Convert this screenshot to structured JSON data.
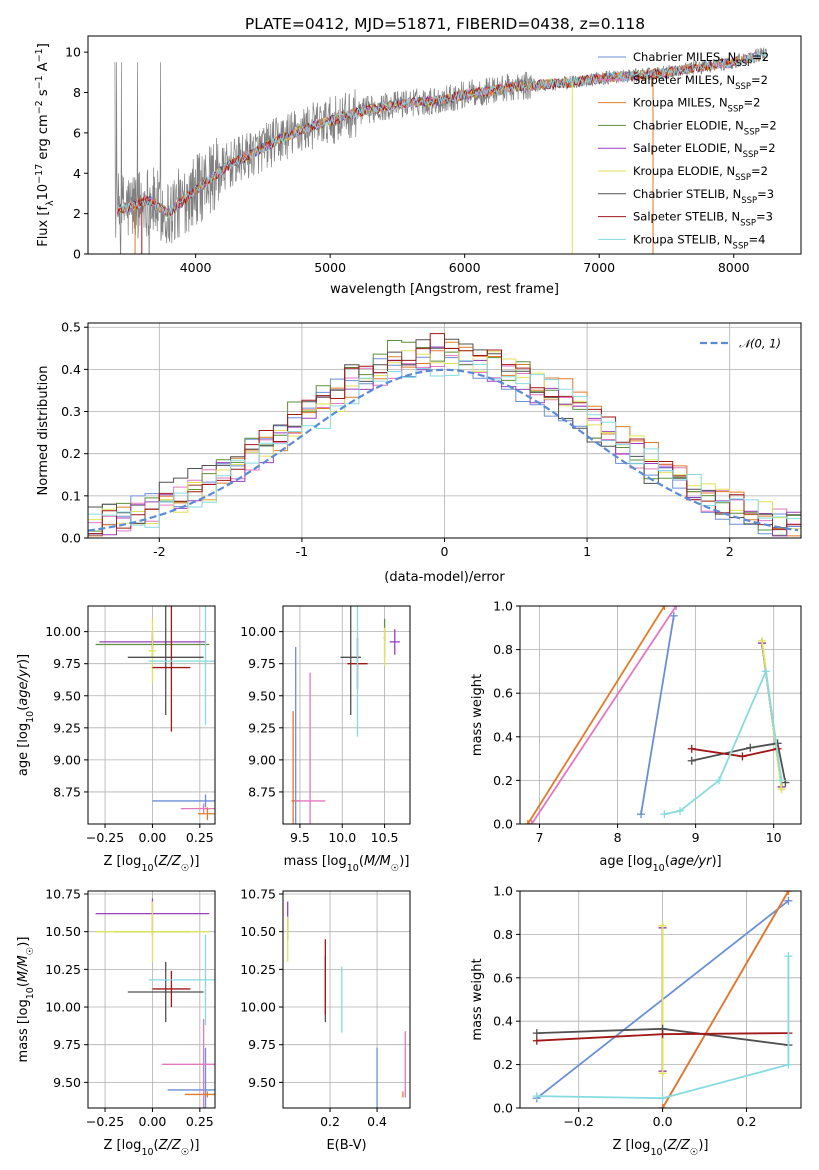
{
  "figure": {
    "title": "PLATE=0412, MJD=51871, FIBERID=0438, z=0.118"
  },
  "series_styles": [
    {
      "name": "Chabrier MILES",
      "nssp": "2",
      "color": "#6a8fd6"
    },
    {
      "name": "Salpeter MILES",
      "nssp": "2",
      "color": "#e377c2"
    },
    {
      "name": "Kroupa MILES",
      "nssp": "2",
      "color": "#e07b2a"
    },
    {
      "name": "Chabrier ELODIE",
      "nssp": "2",
      "color": "#5f8f3c"
    },
    {
      "name": "Salpeter ELODIE",
      "nssp": "2",
      "color": "#9b3fbf"
    },
    {
      "name": "Kroupa ELODIE",
      "nssp": "2",
      "color": "#e2e25a"
    },
    {
      "name": "Chabrier STELIB",
      "nssp": "3",
      "color": "#505050"
    },
    {
      "name": "Salpeter STELIB",
      "nssp": "3",
      "color": "#a01818"
    },
    {
      "name": "Kroupa STELIB",
      "nssp": "4",
      "color": "#86dbe0"
    }
  ],
  "chart_data": [
    {
      "id": "spectrum",
      "type": "line",
      "xlabel": "wavelength [Angstrom, rest frame]",
      "ylabel": "Flux [f_λ 10^-17 erg cm^-2 s^-1 A^-1]",
      "xlim": [
        3200,
        8500
      ],
      "ylim": [
        0,
        10.8
      ],
      "xticks": [
        4000,
        5000,
        6000,
        7000,
        8000
      ],
      "yticks": [
        0,
        2,
        4,
        6,
        8,
        10
      ],
      "legend": "top-right",
      "data_series": {
        "name": "data",
        "color": "#808080",
        "wave_range": [
          3400,
          8250
        ]
      },
      "continuum_x": [
        3400,
        3500,
        3650,
        3800,
        3950,
        4100,
        4250,
        4400,
        4600,
        4800,
        5000,
        5200,
        5400,
        5600,
        5800,
        6000,
        6200,
        6400,
        6600,
        6800,
        7000,
        7200,
        7400,
        7600,
        7800,
        8000,
        8200
      ],
      "continuum_y": [
        2.2,
        2.3,
        2.7,
        2.0,
        2.9,
        3.7,
        4.4,
        4.9,
        5.6,
        6.2,
        6.6,
        7.0,
        7.3,
        7.5,
        7.6,
        7.9,
        8.1,
        8.3,
        8.4,
        8.5,
        8.7,
        8.8,
        8.9,
        9.1,
        9.3,
        9.5,
        9.9
      ]
    },
    {
      "id": "residuals",
      "type": "histogram",
      "xlabel": "(data-model)/error",
      "ylabel": "Normed distribution",
      "xlim": [
        -2.5,
        2.5
      ],
      "ylim": [
        0,
        0.51
      ],
      "xticks": [
        -2,
        -1,
        0,
        1,
        2
      ],
      "yticks": [
        0.0,
        0.1,
        0.2,
        0.3,
        0.4,
        0.5
      ],
      "legend": "top-right",
      "reference_label": "N(0,1)",
      "reference_color": "#5b8bd6",
      "grid": true
    },
    {
      "id": "age_vs_Z",
      "type": "errorbar",
      "xlabel": "Z [log10(Z/Z☉)]",
      "ylabel": "age  [log10(age/yr)]",
      "xlim": [
        -0.34,
        0.33
      ],
      "ylim": [
        8.5,
        10.2
      ],
      "xticks": [
        -0.25,
        0.0,
        0.25
      ],
      "yticks": [
        8.75,
        9.0,
        9.25,
        9.5,
        9.75,
        10.0
      ],
      "grid": true,
      "points": [
        {
          "s": 0,
          "x": 0.28,
          "y": 8.68,
          "xe": 0.28,
          "ye": 0.05
        },
        {
          "s": 1,
          "x": 0.27,
          "y": 8.62,
          "xe": 0.12,
          "ye": 0.04
        },
        {
          "s": 2,
          "x": 0.29,
          "y": 8.58,
          "xe": 0.05,
          "ye": 0.05
        },
        {
          "s": 3,
          "x": 0.0,
          "y": 9.9,
          "xe": 0.3,
          "ye": 0.1
        },
        {
          "s": 4,
          "x": 0.0,
          "y": 9.92,
          "xe": 0.28,
          "ye": 0.05
        },
        {
          "s": 5,
          "x": 0.0,
          "y": 9.85,
          "xe": 0.02,
          "ye": 0.25
        },
        {
          "s": 6,
          "x": 0.07,
          "y": 9.8,
          "xe": 0.2,
          "ye": 0.45
        },
        {
          "s": 7,
          "x": 0.1,
          "y": 9.72,
          "xe": 0.1,
          "ye": 0.5
        },
        {
          "s": 8,
          "x": 0.28,
          "y": 9.77,
          "xe": 0.3,
          "ye": 0.5
        }
      ]
    },
    {
      "id": "age_vs_mass",
      "type": "errorbar",
      "xlabel": "mass [log10(M/M☉)]",
      "ylabel": "",
      "xlim": [
        9.3,
        10.8
      ],
      "ylim": [
        8.5,
        10.2
      ],
      "xticks": [
        9.5,
        10.0,
        10.5
      ],
      "yticks": [
        8.75,
        9.0,
        9.25,
        9.5,
        9.75,
        10.0
      ],
      "grid": true,
      "points": [
        {
          "s": 0,
          "x": 9.45,
          "y": 8.68,
          "xe": 0.05,
          "ye": 1.2
        },
        {
          "s": 1,
          "x": 9.62,
          "y": 8.68,
          "xe": 0.18,
          "ye": 1.0
        },
        {
          "s": 2,
          "x": 9.42,
          "y": 8.68,
          "xe": 0.02,
          "ye": 0.7
        },
        {
          "s": 3,
          "x": 10.5,
          "y": 9.95,
          "xe": 0.01,
          "ye": 0.15
        },
        {
          "s": 4,
          "x": 10.62,
          "y": 9.92,
          "xe": 0.06,
          "ye": 0.1
        },
        {
          "s": 5,
          "x": 10.5,
          "y": 9.88,
          "xe": 0.01,
          "ye": 0.15
        },
        {
          "s": 6,
          "x": 10.1,
          "y": 9.8,
          "xe": 0.12,
          "ye": 0.45
        },
        {
          "s": 7,
          "x": 10.18,
          "y": 9.75,
          "xe": 0.12,
          "ye": 0.2
        },
        {
          "s": 8,
          "x": 10.18,
          "y": 9.78,
          "xe": 0.01,
          "ye": 0.6
        }
      ]
    },
    {
      "id": "weight_vs_age",
      "type": "line",
      "xlabel": "age  [log10(age/yr)]",
      "ylabel": "mass weight",
      "xlim": [
        6.75,
        10.35
      ],
      "ylim": [
        0,
        1
      ],
      "xticks": [
        7,
        8,
        9,
        10
      ],
      "yticks": [
        0.0,
        0.2,
        0.4,
        0.6,
        0.8,
        1.0
      ],
      "grid": true,
      "lines": [
        {
          "s": 0,
          "x": [
            8.3,
            8.72
          ],
          "y": [
            0.045,
            0.955
          ]
        },
        {
          "s": 1,
          "x": [
            6.9,
            8.75
          ],
          "y": [
            0.0,
            1.0
          ]
        },
        {
          "s": 2,
          "x": [
            6.85,
            8.6
          ],
          "y": [
            0.0,
            1.0
          ]
        },
        {
          "s": 3,
          "x": [
            9.85,
            10.1
          ],
          "y": [
            0.83,
            0.17
          ]
        },
        {
          "s": 4,
          "x": [
            9.85,
            10.1
          ],
          "y": [
            0.83,
            0.17
          ]
        },
        {
          "s": 5,
          "x": [
            9.85,
            10.1
          ],
          "y": [
            0.84,
            0.16
          ]
        },
        {
          "s": 6,
          "x": [
            8.95,
            9.7,
            10.05,
            10.15
          ],
          "y": [
            0.29,
            0.35,
            0.37,
            0.19
          ]
        },
        {
          "s": 7,
          "x": [
            8.95,
            9.6,
            10.05
          ],
          "y": [
            0.345,
            0.31,
            0.345
          ]
        },
        {
          "s": 8,
          "x": [
            8.6,
            8.8,
            9.3,
            9.9,
            10.1
          ],
          "y": [
            0.045,
            0.06,
            0.2,
            0.7,
            0.2
          ]
        }
      ]
    },
    {
      "id": "mass_vs_Z",
      "type": "errorbar",
      "xlabel": "Z [log10(Z/Z☉)]",
      "ylabel": "mass [log10(M/M☉)]",
      "xlim": [
        -0.34,
        0.33
      ],
      "ylim": [
        9.33,
        10.77
      ],
      "xticks": [
        -0.25,
        0.0,
        0.25
      ],
      "yticks": [
        9.5,
        9.75,
        10.0,
        10.25,
        10.5,
        10.75
      ],
      "grid": true,
      "points": [
        {
          "s": 0,
          "x": 0.28,
          "y": 9.45,
          "xe": 0.2,
          "ye": 0.28
        },
        {
          "s": 1,
          "x": 0.27,
          "y": 9.62,
          "xe": 0.22,
          "ye": 0.3
        },
        {
          "s": 2,
          "x": 0.29,
          "y": 9.42,
          "xe": 0.12,
          "ye": 0.02
        },
        {
          "s": 3,
          "x": 0.0,
          "y": 10.5,
          "xe": 0.2,
          "ye": 0.02
        },
        {
          "s": 4,
          "x": 0.0,
          "y": 10.62,
          "xe": 0.3,
          "ye": 0.1
        },
        {
          "s": 5,
          "x": 0.0,
          "y": 10.5,
          "xe": 0.3,
          "ye": 0.2
        },
        {
          "s": 6,
          "x": 0.07,
          "y": 10.1,
          "xe": 0.2,
          "ye": 0.2
        },
        {
          "s": 7,
          "x": 0.1,
          "y": 10.12,
          "xe": 0.1,
          "ye": 0.12
        },
        {
          "s": 8,
          "x": 0.28,
          "y": 10.18,
          "xe": 0.3,
          "ye": 0.3
        }
      ]
    },
    {
      "id": "mass_vs_EBV",
      "type": "errorbar",
      "xlabel": "E(B-V)",
      "ylabel": "",
      "xlim": [
        0.0,
        0.54
      ],
      "ylim": [
        9.33,
        10.77
      ],
      "xticks": [
        0.2,
        0.4
      ],
      "yticks": [
        9.5,
        9.75,
        10.0,
        10.25,
        10.5,
        10.75
      ],
      "grid": true,
      "points": [
        {
          "s": 0,
          "x": 0.4,
          "y": 9.45,
          "xe": 0.0,
          "ye": 0.28
        },
        {
          "s": 1,
          "x": 0.52,
          "y": 9.62,
          "xe": 0.0,
          "ye": 0.22
        },
        {
          "s": 2,
          "x": 0.51,
          "y": 9.42,
          "xe": 0.0,
          "ye": 0.02
        },
        {
          "s": 3,
          "x": 0.02,
          "y": 10.5,
          "xe": 0.0,
          "ye": 0.05
        },
        {
          "s": 4,
          "x": 0.02,
          "y": 10.62,
          "xe": 0.0,
          "ye": 0.08
        },
        {
          "s": 5,
          "x": 0.02,
          "y": 10.45,
          "xe": 0.0,
          "ye": 0.15
        },
        {
          "s": 6,
          "x": 0.18,
          "y": 10.12,
          "xe": 0.0,
          "ye": 0.22
        },
        {
          "s": 7,
          "x": 0.18,
          "y": 10.2,
          "xe": 0.0,
          "ye": 0.25
        },
        {
          "s": 8,
          "x": 0.25,
          "y": 10.05,
          "xe": 0.0,
          "ye": 0.22
        }
      ]
    },
    {
      "id": "weight_vs_Z",
      "type": "line",
      "xlabel": "Z [log10(Z/Z☉)]",
      "ylabel": "mass weight",
      "xlim": [
        -0.34,
        0.33
      ],
      "ylim": [
        0,
        1
      ],
      "xticks": [
        -0.2,
        0.0,
        0.2
      ],
      "yticks": [
        0.0,
        0.2,
        0.4,
        0.6,
        0.8,
        1.0
      ],
      "grid": true,
      "lines": [
        {
          "s": 0,
          "x": [
            -0.3,
            0.3
          ],
          "y": [
            0.045,
            0.955
          ]
        },
        {
          "s": 1,
          "x": [
            0.0,
            0.3
          ],
          "y": [
            0.0,
            1.0
          ]
        },
        {
          "s": 2,
          "x": [
            0.0,
            0.3
          ],
          "y": [
            0.0,
            1.0
          ]
        },
        {
          "s": 3,
          "x": [
            0.0,
            0.0
          ],
          "y": [
            0.17,
            0.83
          ]
        },
        {
          "s": 4,
          "x": [
            0.0,
            0.0
          ],
          "y": [
            0.17,
            0.83
          ]
        },
        {
          "s": 5,
          "x": [
            0.0,
            0.0
          ],
          "y": [
            0.16,
            0.84
          ]
        },
        {
          "s": 6,
          "x": [
            -0.3,
            0.0,
            0.3
          ],
          "y": [
            0.345,
            0.365,
            0.29
          ]
        },
        {
          "s": 7,
          "x": [
            -0.3,
            0.0,
            0.3
          ],
          "y": [
            0.31,
            0.34,
            0.345
          ]
        },
        {
          "s": 8,
          "x": [
            -0.3,
            0.0,
            0.3,
            0.3
          ],
          "y": [
            0.055,
            0.045,
            0.2,
            0.7
          ]
        }
      ]
    }
  ]
}
